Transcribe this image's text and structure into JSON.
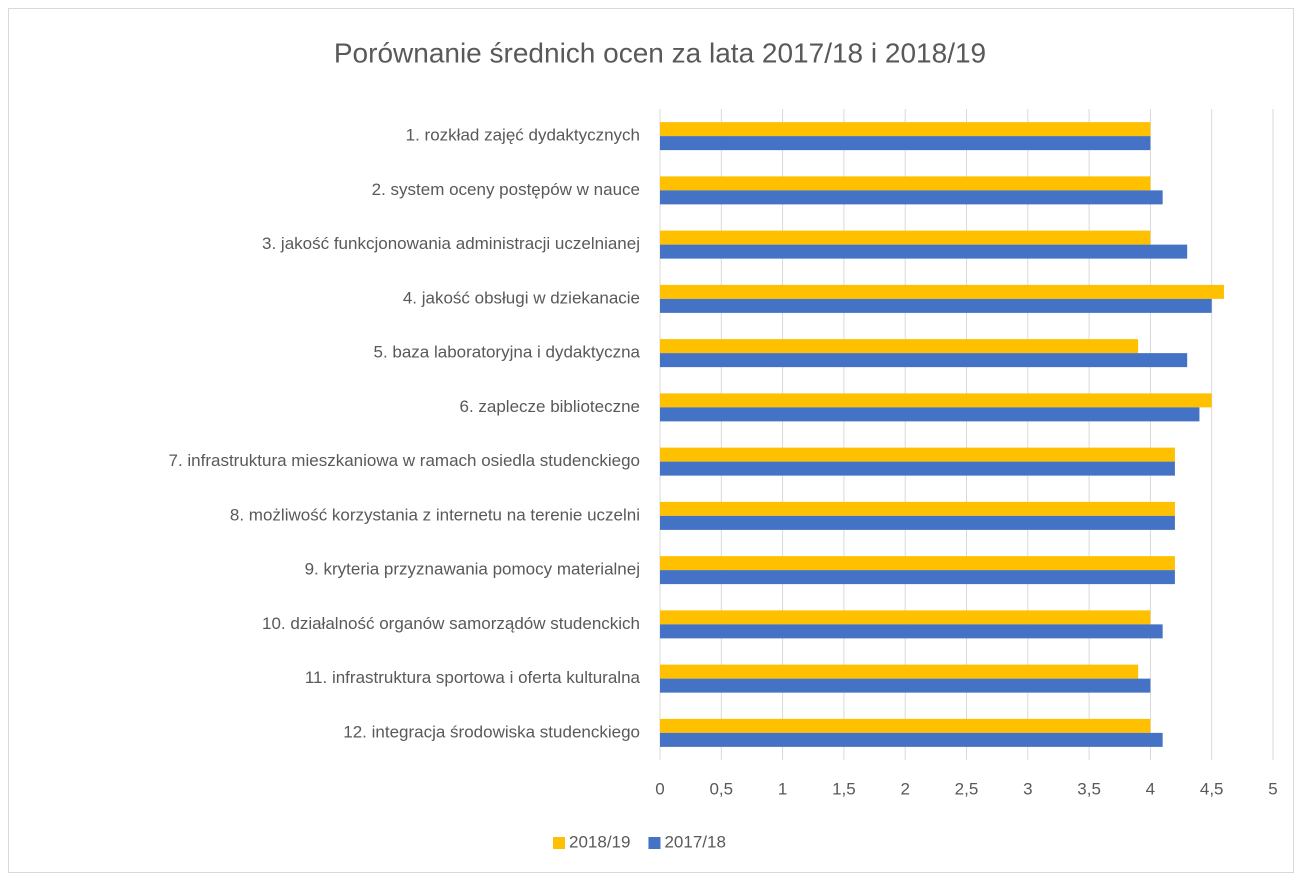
{
  "chart_data": {
    "type": "bar",
    "orientation": "horizontal",
    "title": "Porównanie średnich ocen za lata 2017/18 i 2018/19",
    "categories": [
      "1. rozkład zajęć dydaktycznych",
      "2. system oceny postępów w nauce",
      "3. jakość funkcjonowania administracji uczelnianej",
      "4. jakość obsługi w dziekanacie",
      "5. baza laboratoryjna i dydaktyczna",
      "6. zaplecze biblioteczne",
      "7. infrastruktura mieszkaniowa w ramach osiedla studenckiego",
      "8. możliwość korzystania z internetu na terenie uczelni",
      "9. kryteria przyznawania pomocy materialnej",
      "10. działalność organów samorządów studenckich",
      "11. infrastruktura sportowa i oferta kulturalna",
      "12. integracja środowiska studenckiego"
    ],
    "series": [
      {
        "name": "2018/19",
        "color": "#FFC000",
        "values": [
          4.0,
          4.0,
          4.0,
          4.6,
          3.9,
          4.5,
          4.2,
          4.2,
          4.2,
          4.0,
          3.9,
          4.0
        ]
      },
      {
        "name": "2017/18",
        "color": "#4472C4",
        "values": [
          4.0,
          4.1,
          4.3,
          4.5,
          4.3,
          4.4,
          4.2,
          4.2,
          4.2,
          4.1,
          4.0,
          4.1
        ]
      }
    ],
    "xlim": [
      0,
      5
    ],
    "xticks": [
      0,
      {
        "value": 0.5,
        "label": "0,5"
      },
      1,
      {
        "value": 1.5,
        "label": "1,5"
      },
      2,
      {
        "value": 2.5,
        "label": "2,5"
      },
      3,
      {
        "value": 3.5,
        "label": "3,5"
      },
      4,
      {
        "value": 4.5,
        "label": "4,5"
      },
      5
    ],
    "grid": true,
    "legend": "bottom"
  }
}
